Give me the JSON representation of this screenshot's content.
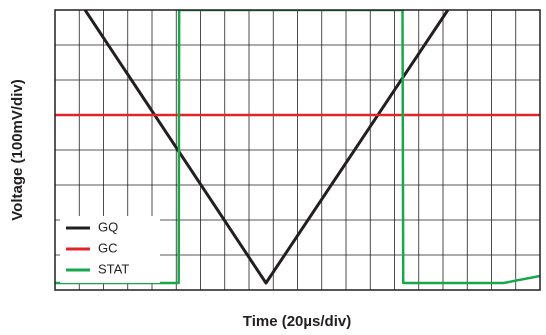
{
  "chart_data": {
    "type": "line",
    "xlabel": "Time (20µs/div)",
    "ylabel": "Voltage (100mV/div)",
    "xlim": [
      0,
      20
    ],
    "ylim": [
      0,
      8
    ],
    "xticks": [
      0,
      1,
      2,
      3,
      4,
      5,
      6,
      7,
      8,
      9,
      10,
      11,
      12,
      13,
      14,
      15,
      16,
      17,
      18,
      19,
      20
    ],
    "yticks": [
      0,
      1,
      2,
      3,
      4,
      5,
      6,
      7,
      8
    ],
    "grid": true,
    "legend": "lower left",
    "series": [
      {
        "name": "GQ",
        "color": "#231f20",
        "x": [
          1.24,
          8.7,
          16.2
        ],
        "values": [
          8,
          0.2,
          8
        ]
      },
      {
        "name": "GC",
        "color": "#e0262b",
        "x": [
          0,
          20
        ],
        "values": [
          5.0,
          5.0
        ]
      },
      {
        "name": "STAT",
        "color": "#1aa64a",
        "x": [
          0,
          5.1,
          5.12,
          14.33,
          14.36,
          18.5,
          20
        ],
        "values": [
          0.2,
          0.2,
          8,
          8,
          0.2,
          0.2,
          0.4
        ]
      }
    ]
  }
}
